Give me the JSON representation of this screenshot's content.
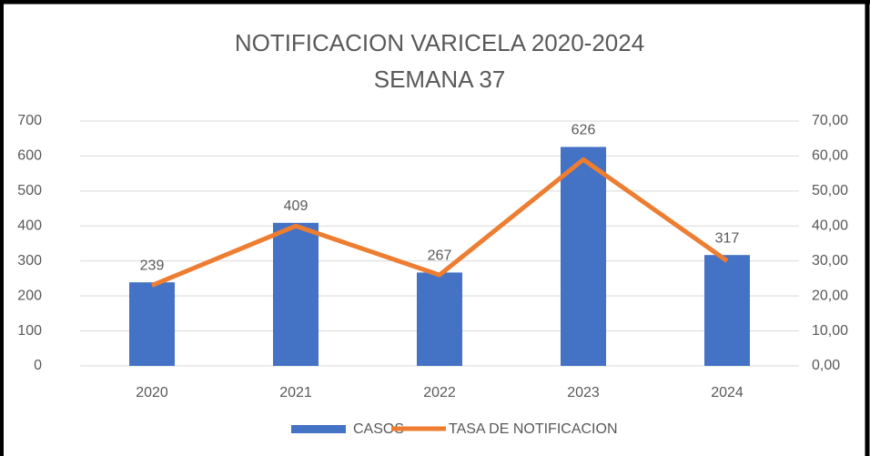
{
  "chart_data": {
    "type": "bar_line",
    "title": "NOTIFICACION VARICELA  2020-2024",
    "subtitle": "SEMANA 37",
    "categories": [
      "2020",
      "2021",
      "2022",
      "2023",
      "2024"
    ],
    "series": [
      {
        "name": "CASOS",
        "type": "bar",
        "color": "#4472c4",
        "values": [
          239,
          409,
          267,
          626,
          317
        ]
      },
      {
        "name": "TASA DE NOTIFICACION",
        "type": "line",
        "axis": "y2",
        "color": "#ed7d31",
        "values": [
          23,
          40,
          26,
          59,
          30
        ]
      }
    ],
    "ylim": [
      0,
      700
    ],
    "yticks": [
      0,
      100,
      200,
      300,
      400,
      500,
      600,
      700
    ],
    "y2lim": [
      0,
      70
    ],
    "y2ticks": [
      {
        "value": 0,
        "label": "0,00"
      },
      {
        "value": 10,
        "label": "10,00"
      },
      {
        "value": 20,
        "label": "20,00"
      },
      {
        "value": 30,
        "label": "30,00"
      },
      {
        "value": 40,
        "label": "40,00"
      },
      {
        "value": 50,
        "label": "50,00"
      },
      {
        "value": 60,
        "label": "60,00"
      },
      {
        "value": 70,
        "label": "70,00"
      }
    ],
    "grid": true,
    "legend": "bottom"
  }
}
